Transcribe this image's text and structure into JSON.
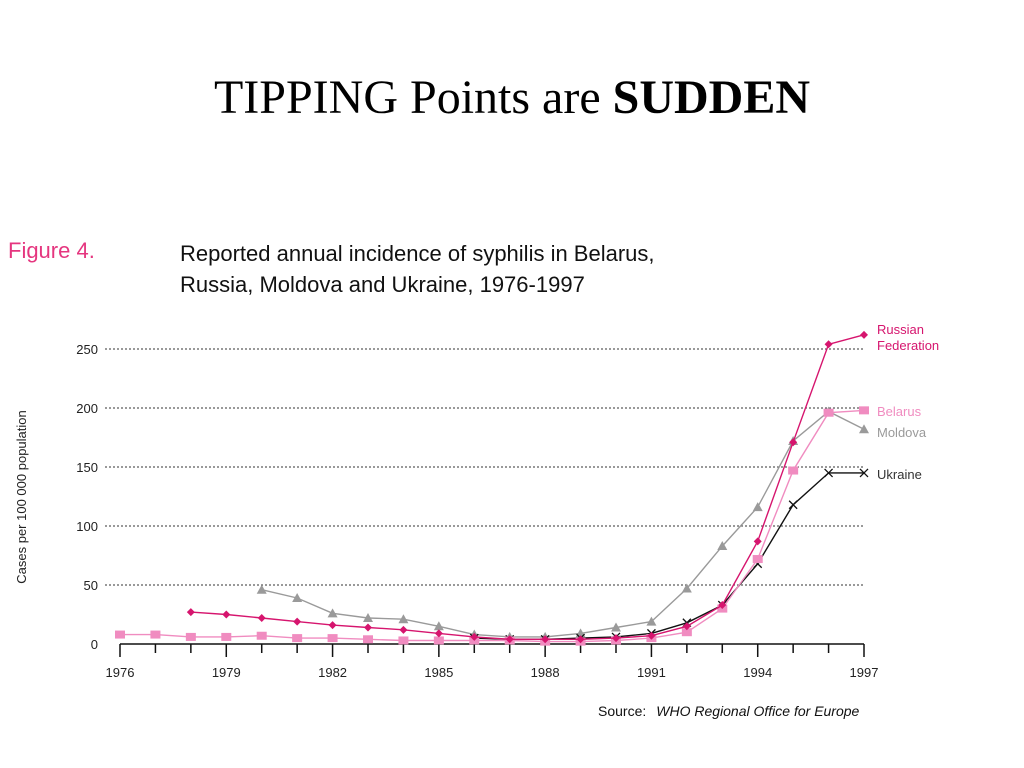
{
  "slide": {
    "title_plain": "TIPPING Points are",
    "title_bold": "SUDDEN"
  },
  "figure": {
    "label": "Figure 4.",
    "caption_line1": "Reported annual incidence of syphilis in Belarus,",
    "caption_line2": "Russia, Moldova and Ukraine, 1976-1997",
    "source_label": "Source:",
    "source_text": "WHO Regional Office for Europe"
  },
  "chart_data": {
    "type": "line",
    "title": "Reported annual incidence of syphilis in Belarus, Russia, Moldova and Ukraine, 1976-1997",
    "xlabel": "",
    "ylabel": "Cases per 100 000 population",
    "xlim": [
      1976,
      1997
    ],
    "ylim": [
      0,
      250
    ],
    "x_ticks": [
      1976,
      1979,
      1982,
      1985,
      1988,
      1991,
      1994,
      1997
    ],
    "y_ticks": [
      0,
      50,
      100,
      150,
      200,
      250
    ],
    "grid": "horizontal-dotted",
    "legend": "right-end-labels",
    "series": [
      {
        "name": "Russian Federation",
        "color": "#d6156e",
        "marker": "diamond",
        "points": [
          [
            1978,
            27
          ],
          [
            1979,
            25
          ],
          [
            1980,
            22
          ],
          [
            1981,
            19
          ],
          [
            1982,
            16
          ],
          [
            1983,
            14
          ],
          [
            1984,
            12
          ],
          [
            1985,
            9
          ],
          [
            1986,
            6
          ],
          [
            1987,
            4
          ],
          [
            1988,
            4
          ],
          [
            1989,
            4
          ],
          [
            1990,
            5
          ],
          [
            1991,
            7
          ],
          [
            1992,
            15
          ],
          [
            1993,
            33
          ],
          [
            1994,
            87
          ],
          [
            1995,
            171
          ],
          [
            1996,
            254
          ],
          [
            1997,
            262
          ]
        ]
      },
      {
        "name": "Belarus",
        "color": "#f08cc0",
        "marker": "square",
        "points": [
          [
            1976,
            8
          ],
          [
            1977,
            8
          ],
          [
            1978,
            6
          ],
          [
            1979,
            6
          ],
          [
            1980,
            7
          ],
          [
            1981,
            5
          ],
          [
            1982,
            5
          ],
          [
            1983,
            4
          ],
          [
            1984,
            3
          ],
          [
            1985,
            3
          ],
          [
            1986,
            3
          ],
          [
            1987,
            3
          ],
          [
            1988,
            2
          ],
          [
            1989,
            2
          ],
          [
            1990,
            3
          ],
          [
            1991,
            5
          ],
          [
            1992,
            10
          ],
          [
            1993,
            30
          ],
          [
            1994,
            72
          ],
          [
            1995,
            147
          ],
          [
            1996,
            196
          ],
          [
            1997,
            198
          ]
        ]
      },
      {
        "name": "Moldova",
        "color": "#9a9a9a",
        "marker": "triangle",
        "points": [
          [
            1980,
            46
          ],
          [
            1981,
            39
          ],
          [
            1982,
            26
          ],
          [
            1983,
            22
          ],
          [
            1984,
            21
          ],
          [
            1985,
            15
          ],
          [
            1986,
            8
          ],
          [
            1987,
            6
          ],
          [
            1988,
            6
          ],
          [
            1989,
            9
          ],
          [
            1990,
            14
          ],
          [
            1991,
            19
          ],
          [
            1992,
            47
          ],
          [
            1993,
            83
          ],
          [
            1994,
            116
          ],
          [
            1995,
            172
          ],
          [
            1996,
            197
          ],
          [
            1997,
            182
          ]
        ]
      },
      {
        "name": "Ukraine",
        "color": "#111111",
        "marker": "x",
        "points": [
          [
            1986,
            5
          ],
          [
            1987,
            4
          ],
          [
            1988,
            4
          ],
          [
            1989,
            5
          ],
          [
            1990,
            6
          ],
          [
            1991,
            9
          ],
          [
            1992,
            18
          ],
          [
            1993,
            33
          ],
          [
            1994,
            68
          ],
          [
            1995,
            118
          ],
          [
            1996,
            145
          ],
          [
            1997,
            145
          ]
        ]
      }
    ]
  }
}
